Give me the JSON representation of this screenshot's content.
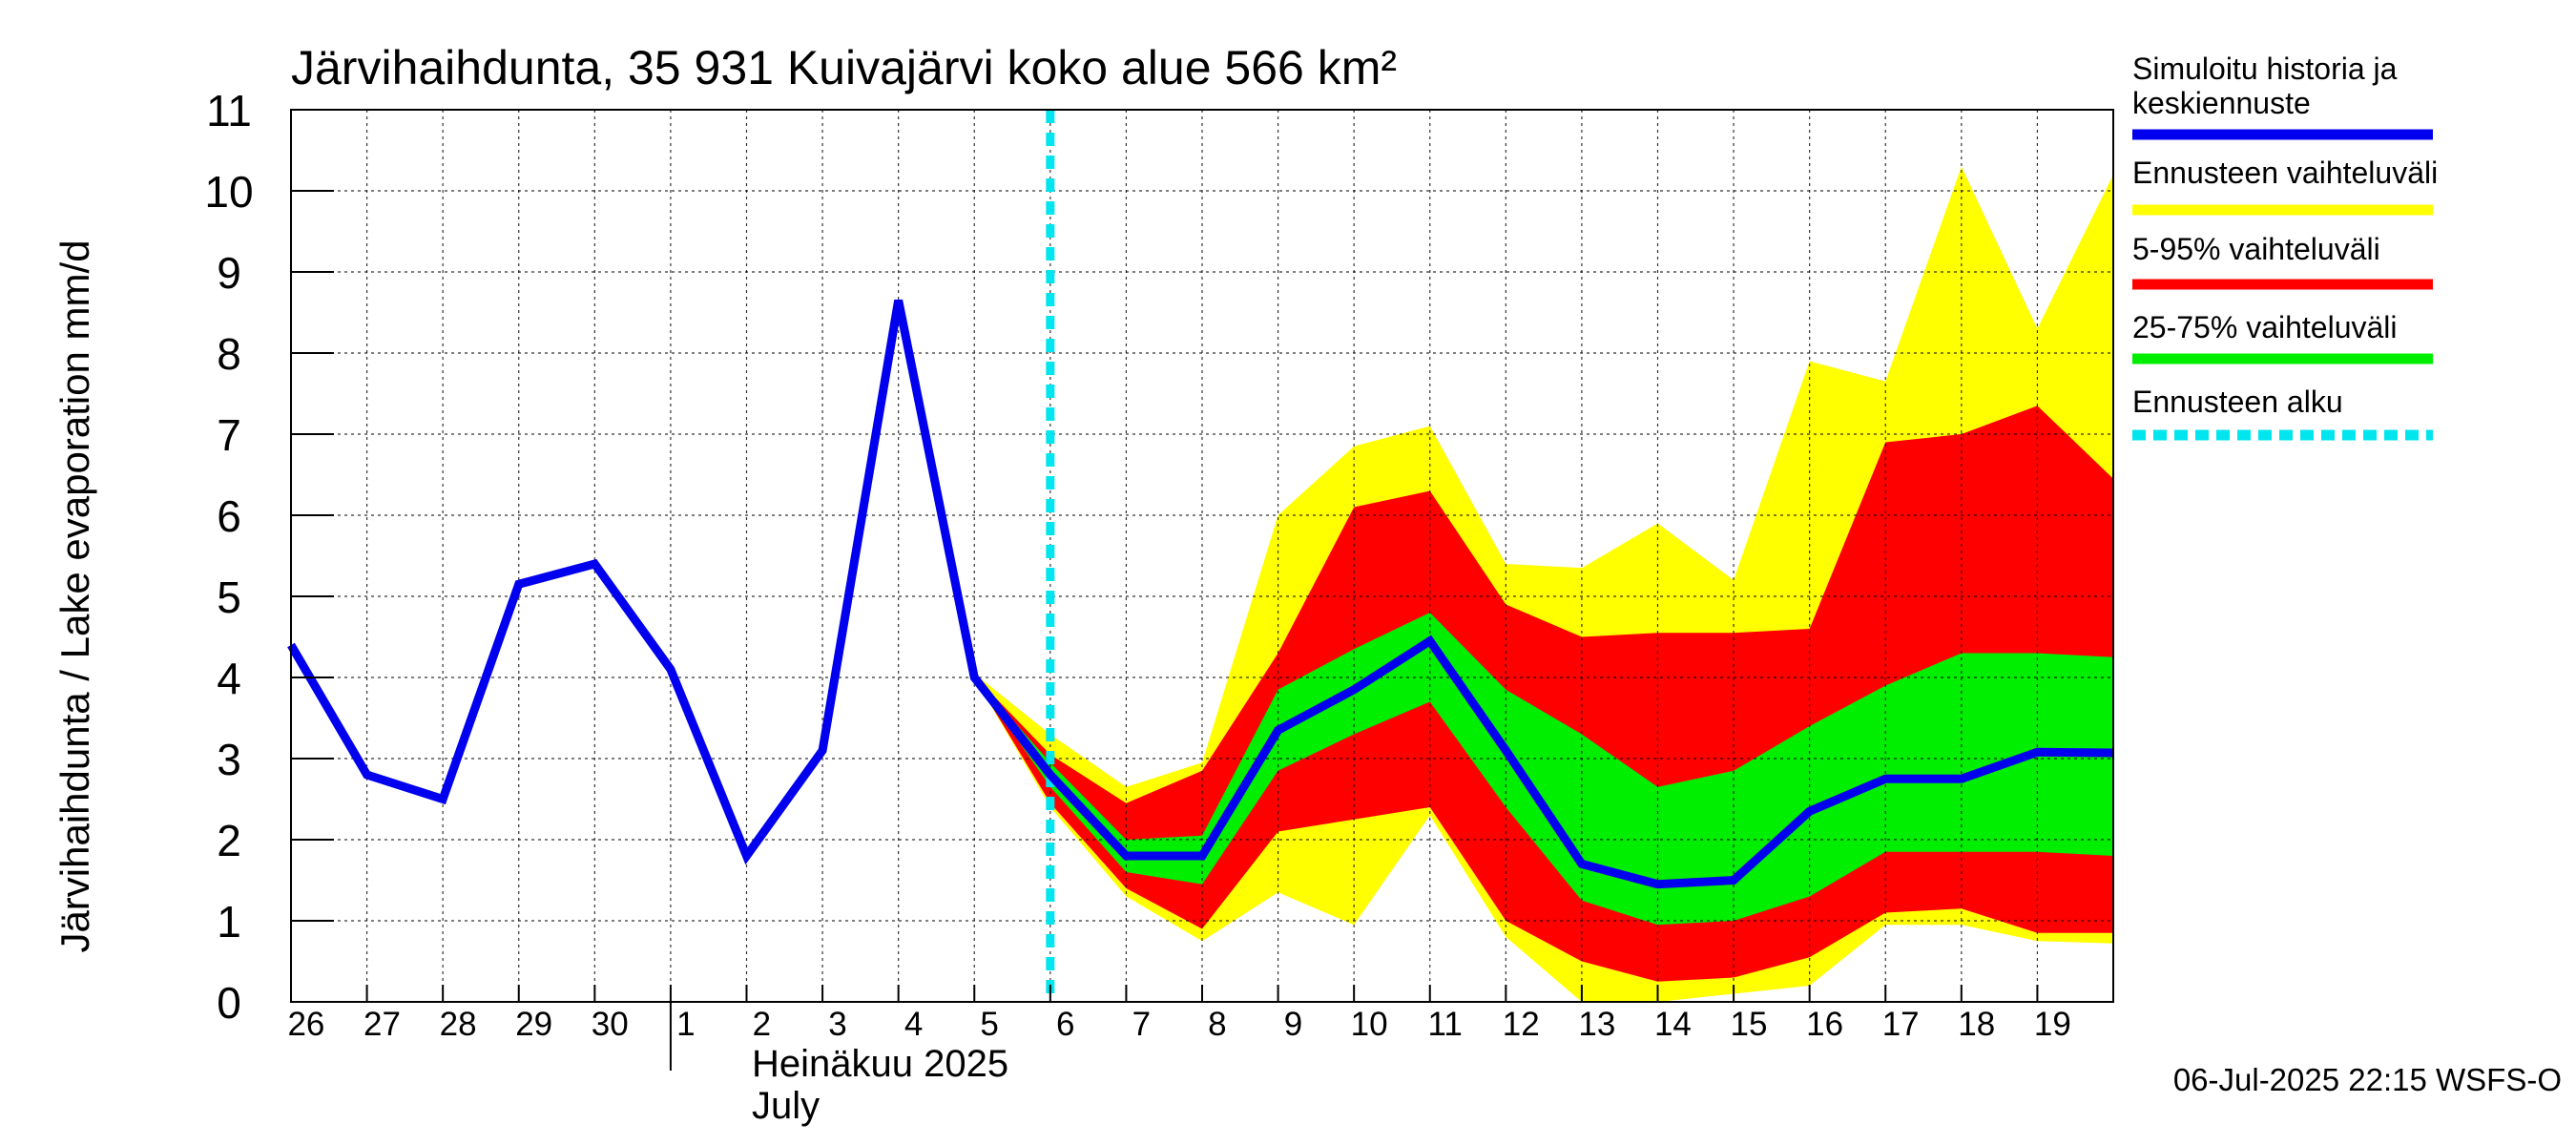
{
  "chart_data": {
    "type": "area",
    "title": "Järvihaihdunta, 35 931 Kuivajärvi koko alue 566 km²",
    "ylabel": "Järvihaihdunta / Lake evaporation   mm/d",
    "xlabel_fi": "Heinäkuu  2025",
    "xlabel_en": "July",
    "timestamp": "06-Jul-2025 22:15 WSFS-O",
    "ylim": [
      0,
      11
    ],
    "yticks": [
      "0",
      "1",
      "2",
      "3",
      "4",
      "5",
      "6",
      "7",
      "8",
      "9",
      "10",
      "11"
    ],
    "x_day_labels": [
      "26",
      "27",
      "28",
      "29",
      "30",
      "1",
      "2",
      "3",
      "4",
      "5",
      "6",
      "7",
      "8",
      "9",
      "10",
      "11",
      "12",
      "13",
      "14",
      "15",
      "16",
      "17",
      "18",
      "19"
    ],
    "x_start": 0,
    "x_end": 24,
    "month_boundary_x": 5,
    "forecast_start_x": 10.0,
    "grid": true,
    "legend_position": "right",
    "series": [
      {
        "name": "Simuloitu historia ja keskiennuste",
        "type": "line",
        "color": "#0000ee",
        "x": [
          0,
          1,
          2,
          3,
          4,
          5,
          6,
          7,
          8,
          9,
          10,
          11,
          12,
          13,
          14,
          15,
          16,
          17,
          18,
          19,
          20,
          21,
          22,
          23,
          24
        ],
        "y": [
          4.4,
          2.8,
          2.5,
          5.15,
          5.4,
          4.1,
          1.8,
          3.1,
          8.65,
          4.0,
          2.8,
          1.8,
          1.8,
          3.35,
          3.85,
          4.45,
          3.1,
          1.7,
          1.45,
          1.5,
          2.35,
          2.75,
          2.75,
          3.08,
          3.07
        ]
      },
      {
        "name": "Ennusteen vaihteluväli",
        "type": "band",
        "color": "#ffff00",
        "x": [
          9,
          10,
          11,
          12,
          13,
          14,
          15,
          16,
          17,
          18,
          19,
          20,
          21,
          22,
          23,
          24
        ],
        "upper": [
          4.05,
          3.3,
          2.65,
          2.95,
          6.0,
          6.85,
          7.1,
          5.4,
          5.35,
          5.9,
          5.2,
          7.9,
          7.65,
          10.3,
          8.3,
          10.2
        ],
        "lower": [
          4.0,
          2.4,
          1.3,
          0.75,
          1.35,
          0.95,
          2.3,
          0.8,
          0.0,
          -0.05,
          0.1,
          0.2,
          0.95,
          0.95,
          0.75,
          0.72
        ]
      },
      {
        "name": "5-95% vaihteluväli",
        "type": "band",
        "color": "#ff0000",
        "x": [
          9,
          10,
          11,
          12,
          13,
          14,
          15,
          16,
          17,
          18,
          19,
          20,
          21,
          22,
          23,
          24
        ],
        "upper": [
          4.02,
          3.05,
          2.45,
          2.85,
          4.3,
          6.1,
          6.3,
          4.9,
          4.5,
          4.55,
          4.55,
          4.6,
          6.9,
          7.0,
          7.35,
          6.45
        ],
        "lower": [
          4.0,
          2.45,
          1.4,
          0.9,
          2.1,
          2.25,
          2.4,
          1.0,
          0.5,
          0.25,
          0.3,
          0.55,
          1.1,
          1.15,
          0.85,
          0.85
        ]
      },
      {
        "name": "25-75% vaihteluväli",
        "type": "band",
        "color": "#00ee00",
        "x": [
          9,
          10,
          11,
          12,
          13,
          14,
          15,
          16,
          17,
          18,
          19,
          20,
          21,
          22,
          23,
          24
        ],
        "upper": [
          4.01,
          2.95,
          2.0,
          2.05,
          3.85,
          4.35,
          4.8,
          3.85,
          3.3,
          2.65,
          2.85,
          3.4,
          3.9,
          4.3,
          4.3,
          4.25
        ],
        "lower": [
          4.0,
          2.65,
          1.6,
          1.45,
          2.85,
          3.3,
          3.7,
          2.4,
          1.25,
          0.95,
          1.0,
          1.3,
          1.85,
          1.85,
          1.85,
          1.8
        ]
      },
      {
        "name": "Ennusteen alku",
        "type": "vline",
        "color": "#00e5ee",
        "x": [
          10.0
        ]
      }
    ]
  }
}
